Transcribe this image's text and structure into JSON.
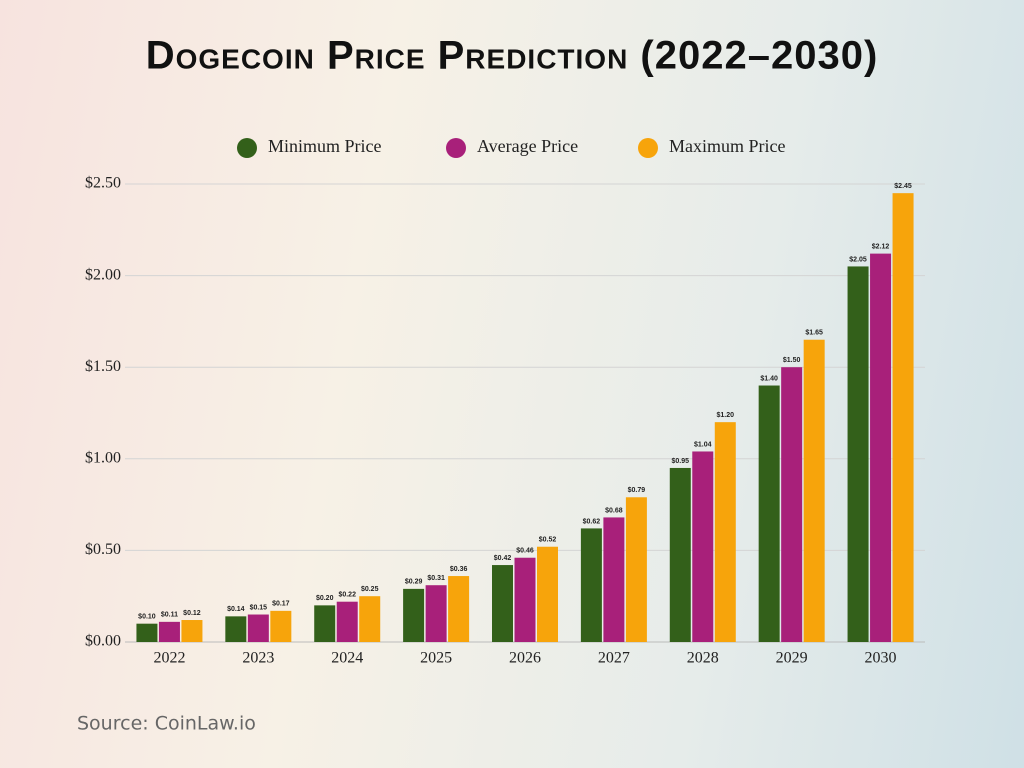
{
  "chart_data": {
    "type": "bar",
    "title": "Dogecoin Price Prediction (2022–2030)",
    "source": "Source: CoinLaw.io",
    "categories": [
      "2022",
      "2023",
      "2024",
      "2025",
      "2026",
      "2027",
      "2028",
      "2029",
      "2030"
    ],
    "series": [
      {
        "name": "Minimum Price",
        "color": "#33601a",
        "values": [
          0.1,
          0.14,
          0.2,
          0.29,
          0.42,
          0.62,
          0.95,
          1.4,
          2.05
        ],
        "value_labels": [
          "$0.10",
          "$0.14",
          "$0.20",
          "$0.29",
          "$0.42",
          "$0.62",
          "$0.95",
          "$1.40",
          "$2.05"
        ]
      },
      {
        "name": "Average Price",
        "color": "#a8207a",
        "values": [
          0.11,
          0.15,
          0.22,
          0.31,
          0.46,
          0.68,
          1.04,
          1.5,
          2.12
        ],
        "value_labels": [
          "$0.11",
          "$0.15",
          "$0.22",
          "$0.31",
          "$0.46",
          "$0.68",
          "$1.04",
          "$1.50",
          "$2.12"
        ]
      },
      {
        "name": "Maximum Price",
        "color": "#f7a40b",
        "values": [
          0.12,
          0.17,
          0.25,
          0.36,
          0.52,
          0.79,
          1.2,
          1.65,
          2.45
        ],
        "value_labels": [
          "$0.12",
          "$0.17",
          "$0.25",
          "$0.36",
          "$0.52",
          "$0.79",
          "$1.20",
          "$1.65",
          "$2.45"
        ]
      }
    ],
    "ylim": [
      0,
      2.5
    ],
    "yticks": [
      {
        "value": 0,
        "label": "$0.00"
      },
      {
        "value": 0.5,
        "label": "$0.50"
      },
      {
        "value": 1,
        "label": "$1.00"
      },
      {
        "value": 1.5,
        "label": "$1.50"
      },
      {
        "value": 2,
        "label": "$2.00"
      },
      {
        "value": 2.5,
        "label": "$2.50"
      }
    ],
    "grid": true,
    "legend": "top"
  }
}
